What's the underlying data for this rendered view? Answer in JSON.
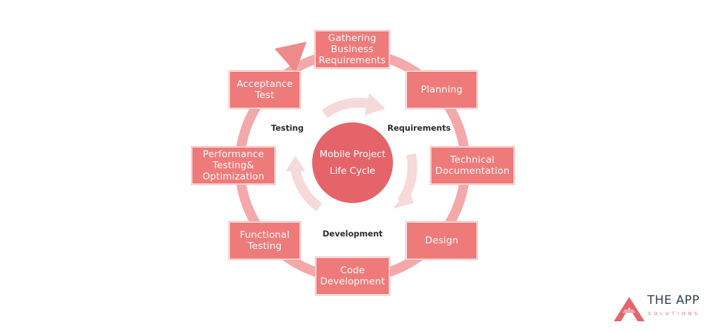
{
  "diagram": {
    "center_label": "Mobile Project\nLife Cycle",
    "stages": [
      "Gathering\nBusiness\nRequirements",
      "Planning",
      "Technical\nDocumentation",
      "Design",
      "Code\nDevelopment",
      "Functional\nTesting",
      "Performance\nTesting&\nOptimization",
      "Acceptance\nTest"
    ],
    "phases": {
      "requirements": "Requirements",
      "development": "Development",
      "testing": "Testing"
    },
    "colors": {
      "stage": "#ef7a7a",
      "center": "#e5646a",
      "outer_ring": "#f3a9a9",
      "inner_arrows": "#f6d9d9"
    }
  },
  "brand": {
    "name": "THE APP",
    "tagline": "SOLUTIONS"
  }
}
